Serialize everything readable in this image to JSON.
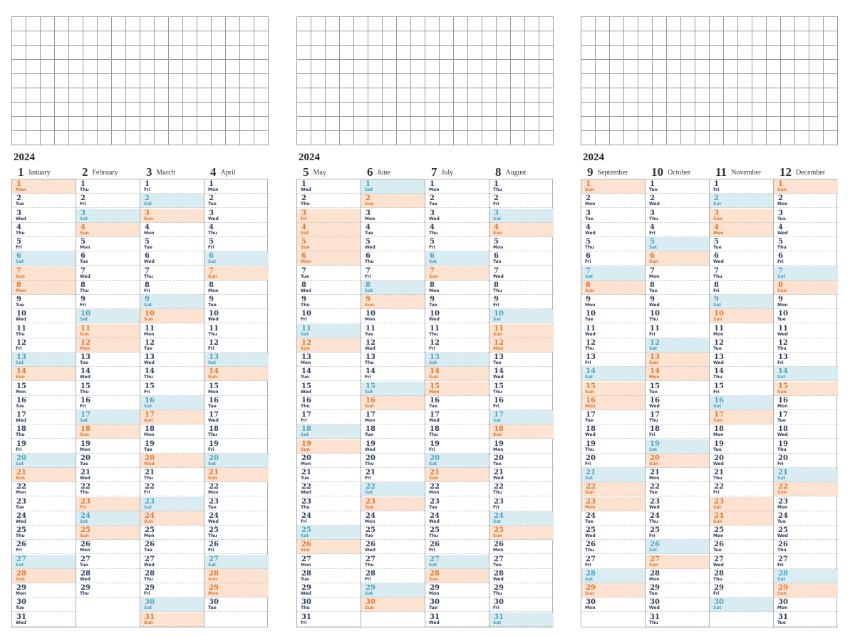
{
  "year": "2024",
  "panels": [
    {
      "months": [
        {
          "num": "1",
          "name": "January"
        },
        {
          "num": "2",
          "name": "February"
        },
        {
          "num": "3",
          "name": "March"
        },
        {
          "num": "4",
          "name": "April"
        }
      ]
    },
    {
      "months": [
        {
          "num": "5",
          "name": "May"
        },
        {
          "num": "6",
          "name": "June"
        },
        {
          "num": "7",
          "name": "July"
        },
        {
          "num": "8",
          "name": "August"
        }
      ]
    },
    {
      "months": [
        {
          "num": "9",
          "name": "September"
        },
        {
          "num": "10",
          "name": "October"
        },
        {
          "num": "11",
          "name": "November"
        },
        {
          "num": "12",
          "name": "December"
        }
      ]
    }
  ],
  "weekday_names": [
    "Mon",
    "Tue",
    "Wed",
    "Thu",
    "Fri",
    "Sat",
    "Sun"
  ],
  "month_calendar": [
    {
      "days": 31,
      "first_weekday": "Mon"
    },
    {
      "days": 29,
      "first_weekday": "Thu"
    },
    {
      "days": 31,
      "first_weekday": "Fri"
    },
    {
      "days": 30,
      "first_weekday": "Mon"
    },
    {
      "days": 31,
      "first_weekday": "Wed"
    },
    {
      "days": 30,
      "first_weekday": "Sat"
    },
    {
      "days": 31,
      "first_weekday": "Mon"
    },
    {
      "days": 31,
      "first_weekday": "Thu"
    },
    {
      "days": 30,
      "first_weekday": "Sun"
    },
    {
      "days": 31,
      "first_weekday": "Tue"
    },
    {
      "days": 30,
      "first_weekday": "Fri"
    },
    {
      "days": 31,
      "first_weekday": "Sun"
    }
  ],
  "holidays": {
    "1": [
      1,
      8
    ],
    "2": [
      12,
      23
    ],
    "3": [
      20
    ],
    "4": [
      29
    ],
    "5": [
      3,
      4,
      5,
      6
    ],
    "7": [
      15
    ],
    "8": [
      11,
      12
    ],
    "9": [
      16,
      22,
      23
    ],
    "10": [
      14
    ],
    "11": [
      3,
      4,
      23
    ]
  },
  "colors": {
    "weekday_text": "#2a3b58",
    "saturday_fill": "#d9ecf2",
    "saturday_text": "#4aa0be",
    "sunday_holiday_fill": "#fbe2d1",
    "sunday_holiday_text": "#e0762c",
    "grid_line": "#9a9a9a"
  }
}
